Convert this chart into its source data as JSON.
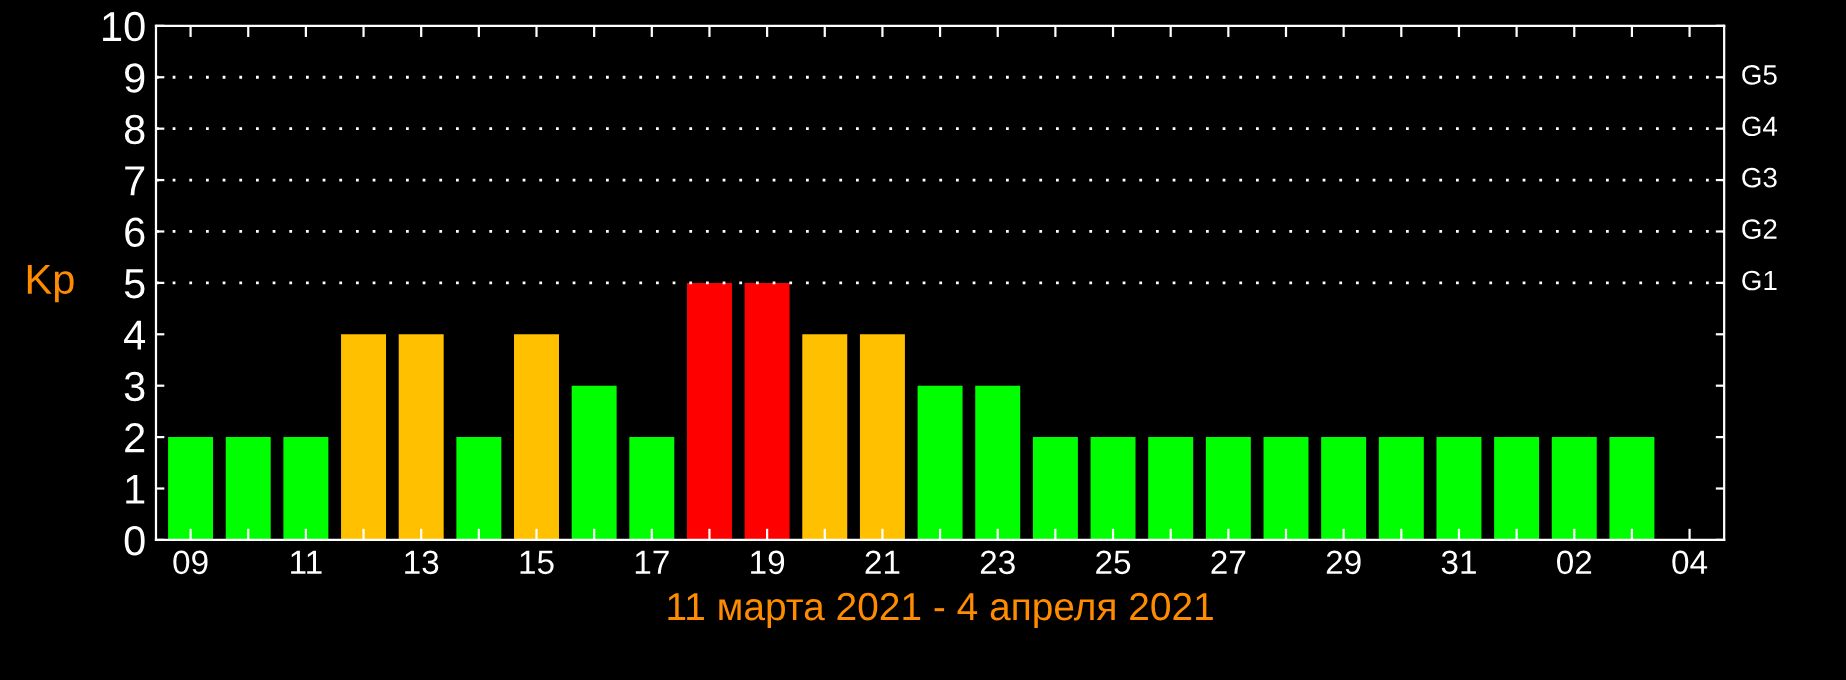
{
  "chart_data": {
    "type": "bar",
    "xlabel": "11 марта 2021 - 4 апреля 2021",
    "ylabel": "Kp",
    "categories": [
      "09",
      null,
      "11",
      null,
      "13",
      null,
      "15",
      null,
      "17",
      null,
      "19",
      null,
      "21",
      null,
      "23",
      null,
      "25",
      null,
      "27",
      null,
      "29",
      null,
      "31",
      null,
      "02",
      null,
      "04"
    ],
    "values": [
      2,
      2,
      2,
      4,
      4,
      2,
      4,
      3,
      2,
      5,
      5,
      4,
      4,
      3,
      3,
      2,
      2,
      2,
      2,
      2,
      2,
      2,
      2,
      2,
      2,
      2,
      null
    ],
    "colors": [
      "#00ff00",
      "#00ff00",
      "#00ff00",
      "#ffc000",
      "#ffc000",
      "#00ff00",
      "#ffc000",
      "#00ff00",
      "#00ff00",
      "#ff0000",
      "#ff0000",
      "#ffc000",
      "#ffc000",
      "#00ff00",
      "#00ff00",
      "#00ff00",
      "#00ff00",
      "#00ff00",
      "#00ff00",
      "#00ff00",
      "#00ff00",
      "#00ff00",
      "#00ff00",
      "#00ff00",
      "#00ff00",
      "#00ff00",
      null
    ],
    "ylim": [
      0,
      10
    ],
    "yticks": [
      0,
      1,
      2,
      3,
      4,
      5,
      6,
      7,
      8,
      9,
      10
    ],
    "ref_lines": [
      {
        "axis": "y",
        "value": 5,
        "label": "G1",
        "color": "#ffffff",
        "line_style": "dotted"
      },
      {
        "axis": "y",
        "value": 6,
        "label": "G2",
        "color": "#ffffff",
        "line_style": "dotted"
      },
      {
        "axis": "y",
        "value": 7,
        "label": "G3",
        "color": "#ffffff",
        "line_style": "dotted"
      },
      {
        "axis": "y",
        "value": 8,
        "label": "G4",
        "color": "#ffffff",
        "line_style": "dotted"
      },
      {
        "axis": "y",
        "value": 9,
        "label": "G5",
        "color": "#ffffff",
        "line_style": "dotted"
      }
    ],
    "grid": false,
    "legend": false
  }
}
